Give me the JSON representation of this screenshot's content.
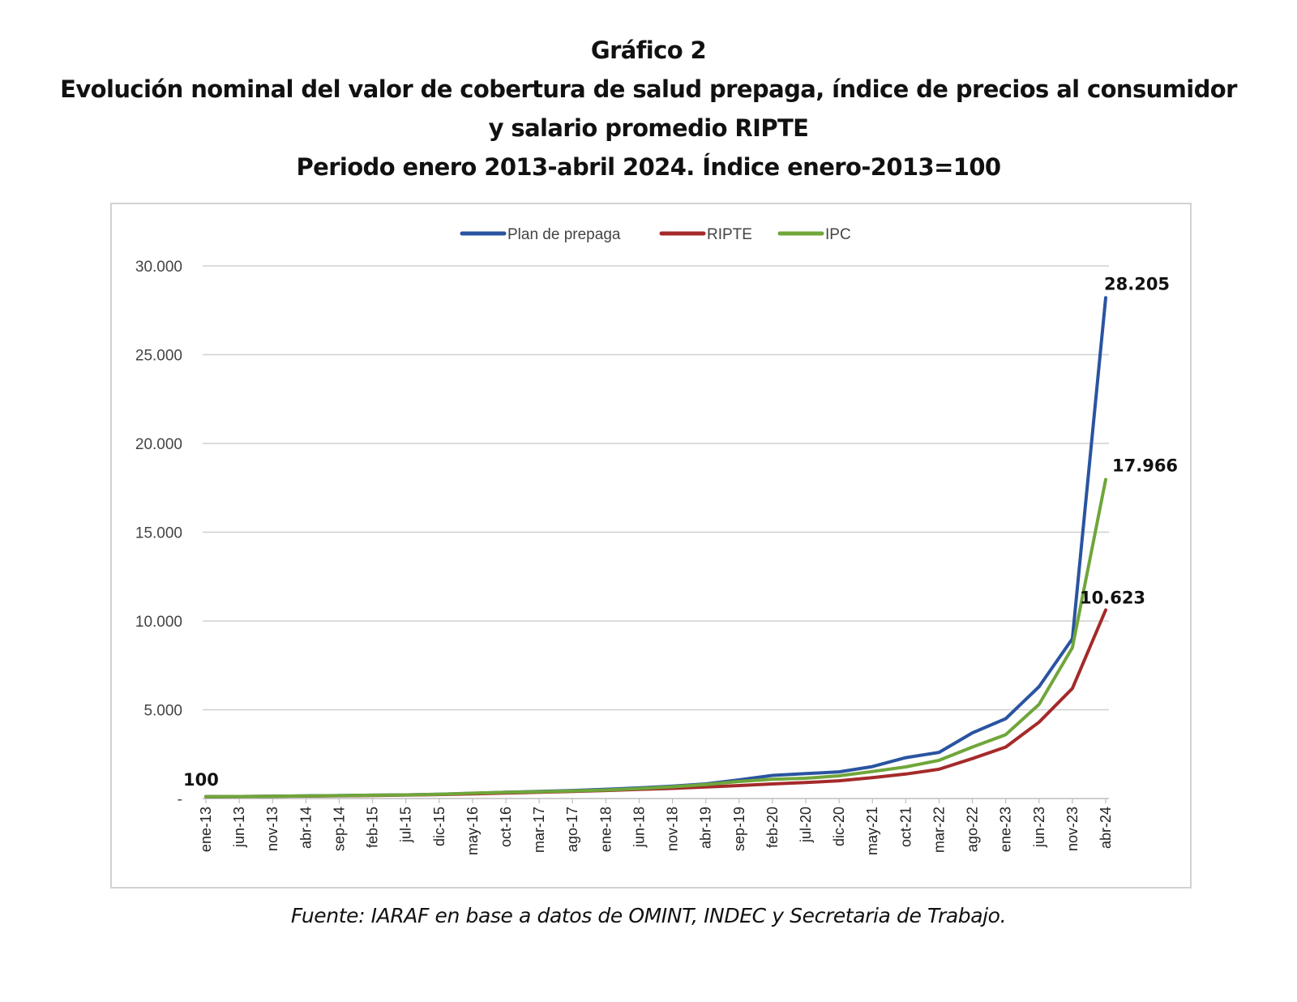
{
  "titles": {
    "line1": "Gráfico 2",
    "line2": "Evolución nominal del valor de cobertura de salud prepaga, índice de precios al consumidor",
    "line3": "y salario promedio RIPTE",
    "line4": "Periodo enero 2013-abril 2024. Índice enero-2013=100"
  },
  "source": "Fuente: IARAF en base a datos de OMINT, INDEC y Secretaria de Trabajo.",
  "chart_data": {
    "type": "line",
    "title": "Evolución nominal del valor de cobertura de salud prepaga, índice de precios al consumidor y salario promedio RIPTE",
    "subtitle": "Periodo enero 2013-abril 2024. Índice enero-2013=100",
    "xlabel": "",
    "ylabel": "",
    "ylim": [
      0,
      30000
    ],
    "yticks": [
      0,
      5000,
      10000,
      15000,
      20000,
      25000,
      30000
    ],
    "ytick_labels": [
      "-",
      "5.000",
      "10.000",
      "15.000",
      "20.000",
      "25.000",
      "30.000"
    ],
    "grid": true,
    "legend": {
      "position": "top-center",
      "entries": [
        "Plan de prepaga",
        "RIPTE",
        "IPC"
      ]
    },
    "x": [
      "ene-13",
      "jun-13",
      "nov-13",
      "abr-14",
      "sep-14",
      "feb-15",
      "jul-15",
      "dic-15",
      "may-16",
      "oct-16",
      "mar-17",
      "ago-17",
      "ene-18",
      "jun-18",
      "nov-18",
      "abr-19",
      "sep-19",
      "feb-20",
      "jul-20",
      "dic-20",
      "may-21",
      "oct-21",
      "mar-22",
      "ago-22",
      "ene-23",
      "jun-23",
      "nov-23",
      "abr-24"
    ],
    "series": [
      {
        "name": "Plan de prepaga",
        "color": "#2a54a0",
        "values": [
          100,
          115,
          130,
          150,
          165,
          185,
          205,
          240,
          290,
          350,
          400,
          450,
          520,
          600,
          700,
          820,
          1050,
          1300,
          1400,
          1500,
          1800,
          2300,
          2600,
          3700,
          4500,
          6300,
          9000,
          28205
        ]
      },
      {
        "name": "RIPTE",
        "color": "#a52a2a",
        "values": [
          100,
          110,
          122,
          138,
          155,
          172,
          192,
          222,
          262,
          305,
          350,
          398,
          450,
          510,
          570,
          650,
          730,
          820,
          900,
          1000,
          1180,
          1380,
          1650,
          2250,
          2900,
          4300,
          6200,
          10623
        ]
      },
      {
        "name": "IPC",
        "color": "#6fa63a",
        "values": [
          100,
          112,
          125,
          145,
          165,
          185,
          205,
          240,
          300,
          345,
          385,
          430,
          480,
          560,
          660,
          790,
          960,
          1080,
          1140,
          1280,
          1520,
          1780,
          2150,
          2900,
          3600,
          5300,
          8500,
          17966
        ]
      }
    ],
    "annotations": [
      {
        "text": "100",
        "series": "IPC",
        "x": "ene-13"
      },
      {
        "text": "28.205",
        "series": "Plan de prepaga",
        "x": "abr-24"
      },
      {
        "text": "17.966",
        "series": "IPC",
        "x": "abr-24"
      },
      {
        "text": "10.623",
        "series": "RIPTE",
        "x": "abr-24"
      }
    ]
  }
}
